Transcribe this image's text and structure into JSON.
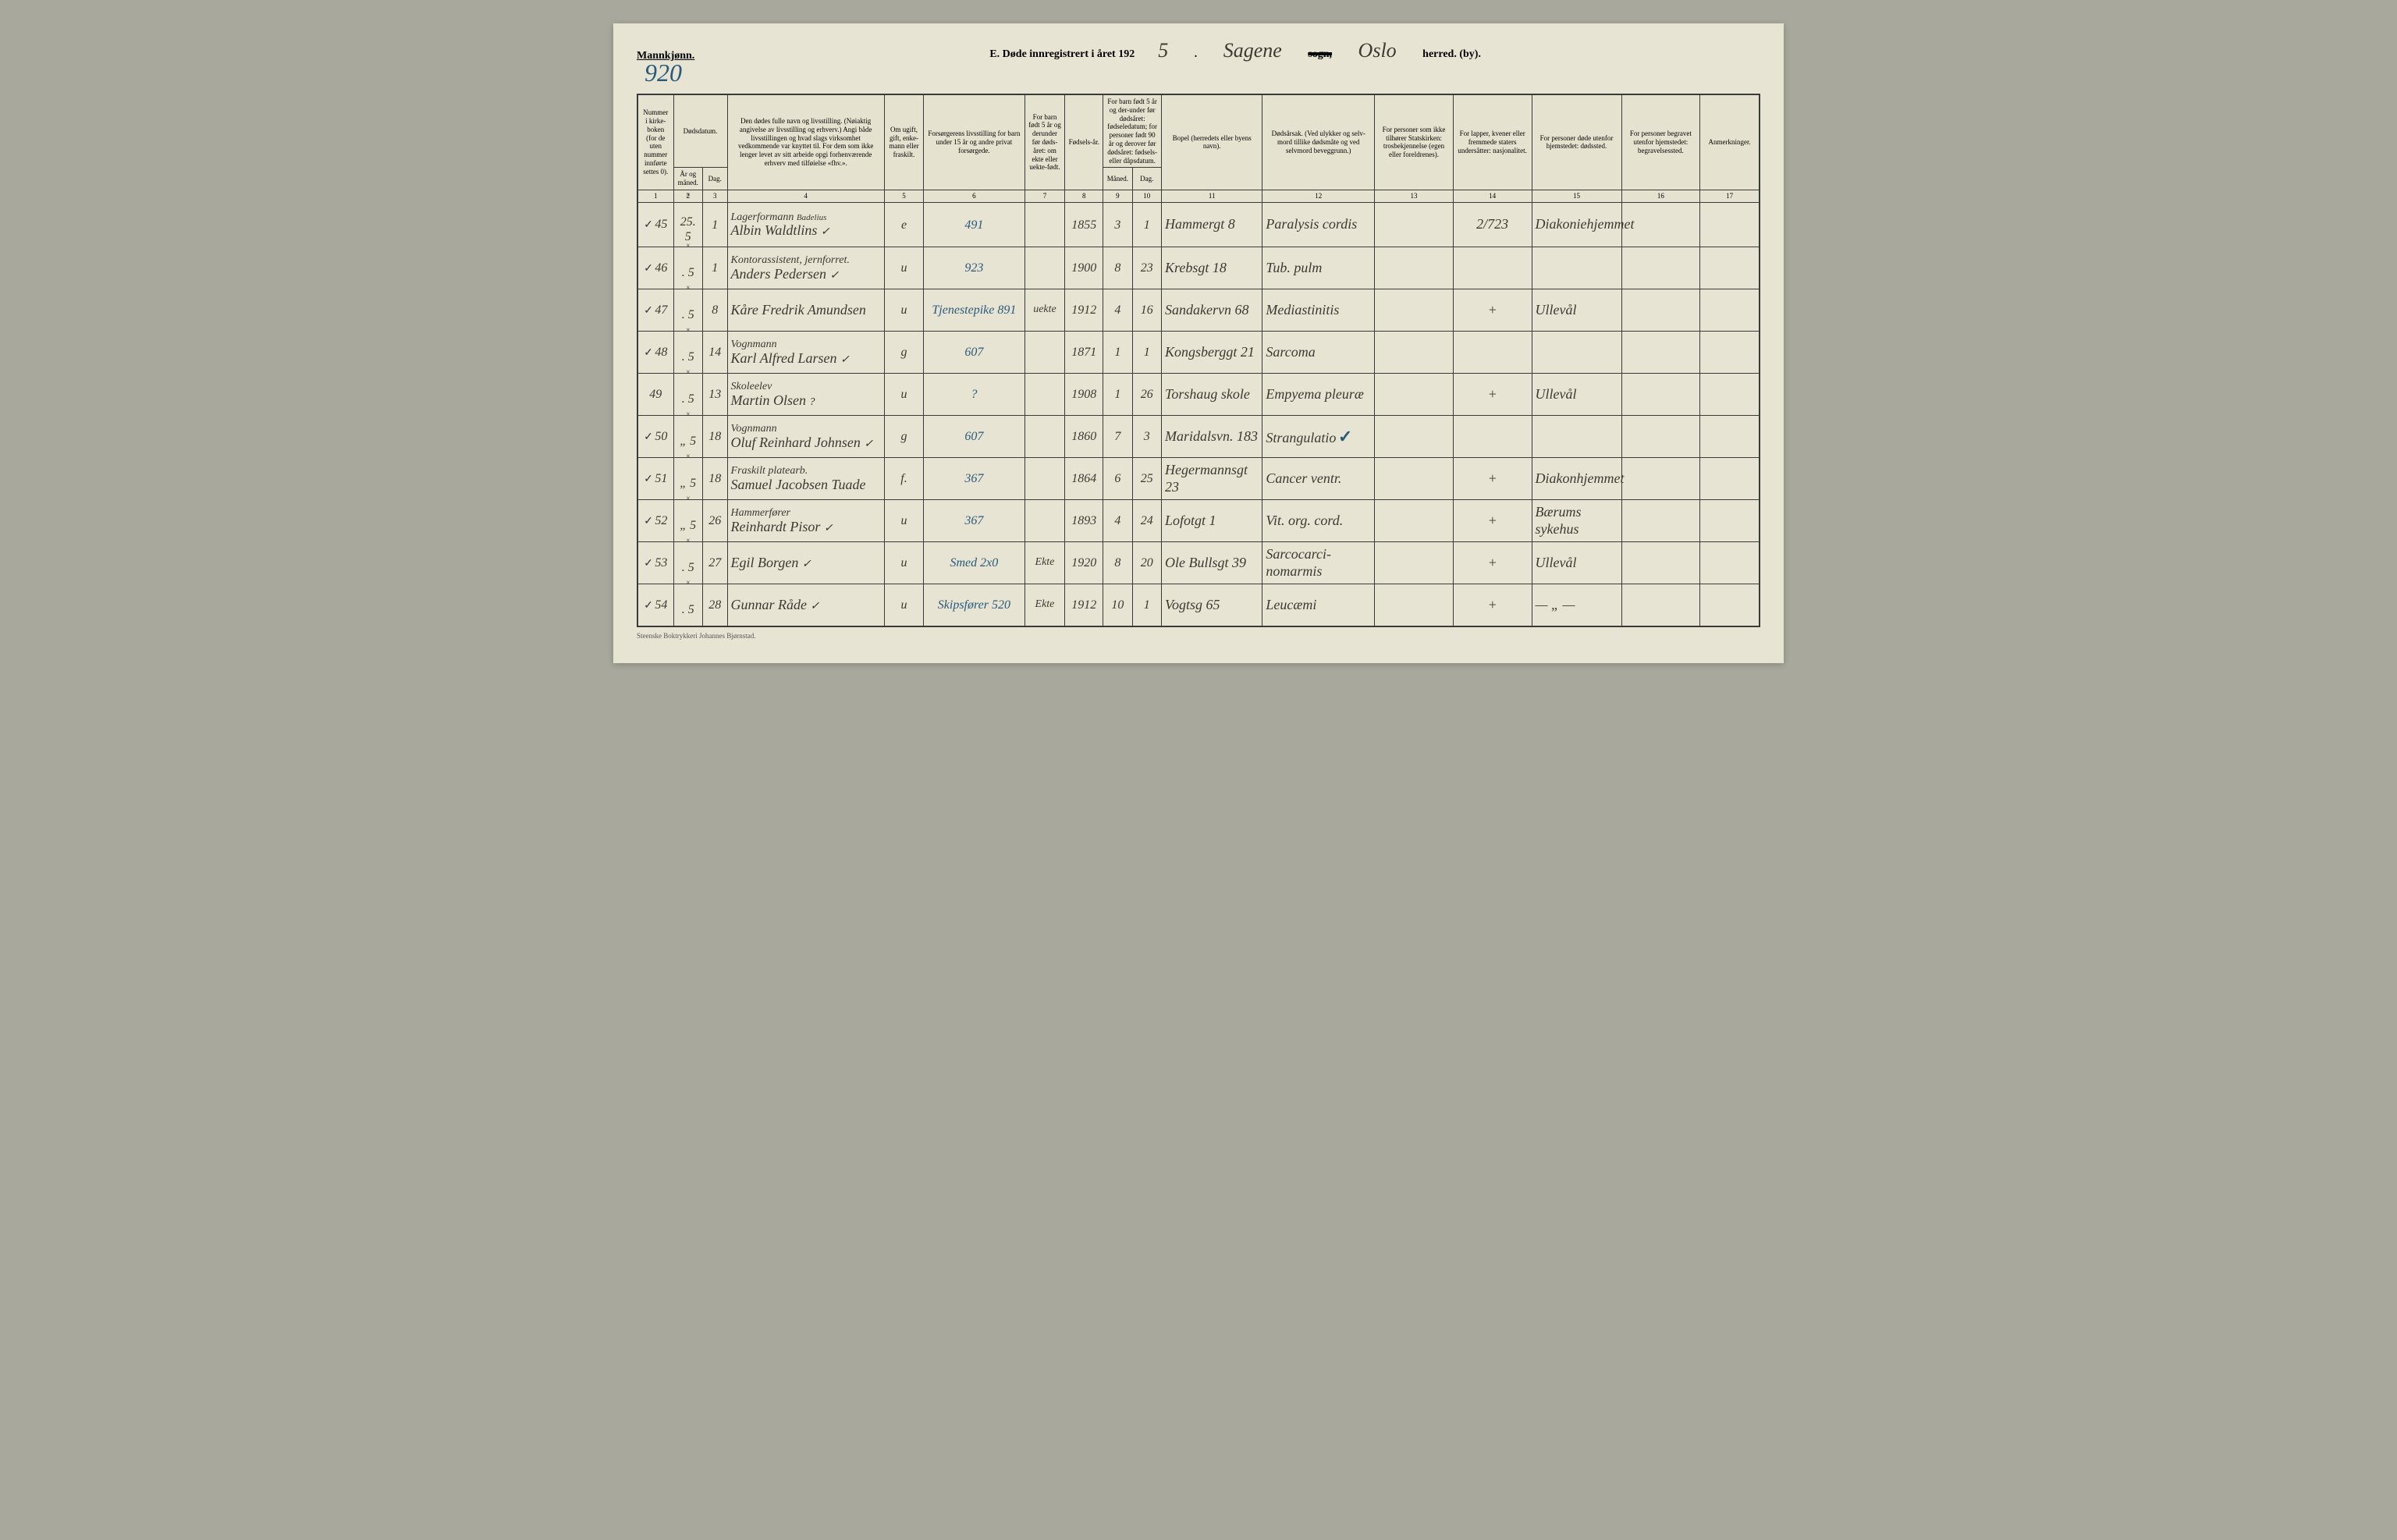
{
  "header": {
    "gender": "Mannkjønn.",
    "page_number": "920",
    "title_prefix": "E.  Døde innregistrert i året 192",
    "year_suffix": "5",
    "parish": "Sagene",
    "sogn_label": "sogn,",
    "city": "Oslo",
    "herred_label": "herred. (by)."
  },
  "columns": {
    "c1": "Nummer i kirke-boken (for de uten nummer innførte settes 0).",
    "c2a": "Dødsdatum.",
    "c2b_ar": "År og måned.",
    "c2b_dag": "Dag.",
    "c4": "Den dødes fulle navn og livsstilling. (Nøiaktig angivelse av livsstilling og erhverv.) Angi både livsstillingen og hvad slags virksomhet vedkommende var knyttet til. For dem som ikke lenger levet av sitt arbeide opgi forhenværende erhverv med tilføielse «fhv.».",
    "c5": "Om ugift, gift, enke-mann eller fraskilt.",
    "c6": "Forsørgerens livsstilling for barn under 15 år og andre privat forsørgede.",
    "c7": "For barn født 5 år og derunder før døds-året: om ekte eller uekte-født.",
    "c8": "Fødsels-år.",
    "c9_10": "For barn født 5 år og der-under før dødsåret: fødseledatum; for personer født 90 år og derover før dødsåret: fødsels- eller dåpsdatum.",
    "c9": "Måned.",
    "c10": "Dag.",
    "c11": "Bopel (herredets eller byens navn).",
    "c12": "Dødsårsak. (Ved ulykker og selv-mord tillike dødsmåte og ved selvmord beveggrunn.)",
    "c13": "For personer som ikke tilhører Statskirken: trosbekjennelse (egen eller foreldrenes).",
    "c14": "For lapper, kvener eller fremmede staters undersåtter: nasjonalitet.",
    "c15": "For personer døde utenfor hjemstedet: dødssted.",
    "c16": "For personer begravet utenfor hjemstedet: begravelsessted.",
    "c17": "Anmerkninger."
  },
  "colnums": [
    "1",
    "2",
    "3",
    "4",
    "5",
    "6",
    "7",
    "8",
    "9",
    "10",
    "11",
    "12",
    "13",
    "14",
    "15",
    "16",
    "17"
  ],
  "rows": [
    {
      "check": "✓",
      "num": "45",
      "ar": "25. 5",
      "dag": "1",
      "occupation": "Lagerformann",
      "sup": "Badelius",
      "name": "Albin Waldtlins",
      "tick": "✓",
      "marital": "e",
      "forsorger": "491",
      "ekte": "",
      "faar": "1855",
      "fmnd": "3",
      "fdag": "1",
      "bopel": "Hammergt 8",
      "cause": "Paralysis cordis",
      "c13": "",
      "c14": "2/723",
      "c15": "Diakoniehjemmet",
      "c16": "",
      "c17": ""
    },
    {
      "check": "✓",
      "num": "46",
      "ar": ". 5",
      "dag": "1",
      "occupation": "Kontorassistent, jernforret.",
      "name": "Anders Pedersen",
      "tick": "✓",
      "marital": "u",
      "forsorger": "923",
      "ekte": "",
      "faar": "1900",
      "fmnd": "8",
      "fdag": "23",
      "bopel": "Krebsgt 18",
      "cause": "Tub. pulm",
      "c13": "",
      "c14": "",
      "c15": "",
      "c16": "",
      "c17": ""
    },
    {
      "check": "✓",
      "num": "47",
      "ar": ". 5",
      "dag": "8",
      "occupation": "",
      "name": "Kåre Fredrik Amundsen",
      "tick": "",
      "marital": "u",
      "forsorger": "Tjenestepike  891",
      "ekte": "uekte",
      "faar": "1912",
      "fmnd": "4",
      "fdag": "16",
      "bopel": "Sandakervn 68",
      "cause": "Mediastinitis",
      "c13": "",
      "c14": "+",
      "c15": "Ullevål",
      "c16": "",
      "c17": ""
    },
    {
      "check": "✓",
      "num": "48",
      "ar": ". 5",
      "dag": "14",
      "occupation": "Vognmann",
      "name": "Karl Alfred Larsen",
      "tick": "✓",
      "marital": "g",
      "forsorger": "607",
      "ekte": "",
      "faar": "1871",
      "fmnd": "1",
      "fdag": "1",
      "bopel": "Kongsberggt 21",
      "cause": "Sarcoma",
      "c13": "",
      "c14": "",
      "c15": "",
      "c16": "",
      "c17": ""
    },
    {
      "check": "",
      "num": "49",
      "ar": ". 5",
      "dag": "13",
      "occupation": "Skoleelev",
      "name": "Martin Olsen",
      "tick": "?",
      "marital": "u",
      "forsorger": "?",
      "ekte": "",
      "faar": "1908",
      "fmnd": "1",
      "fdag": "26",
      "bopel": "Torshaug skole",
      "cause": "Empyema pleuræ",
      "c13": "",
      "c14": "+",
      "c15": "Ullevål",
      "c16": "",
      "c17": ""
    },
    {
      "check": "✓",
      "num": "50",
      "ar": "„ 5",
      "dag": "18",
      "occupation": "Vognmann",
      "name": "Oluf Reinhard Johnsen",
      "tick": "✓",
      "marital": "g",
      "forsorger": "607",
      "ekte": "",
      "faar": "1860",
      "fmnd": "7",
      "fdag": "3",
      "bopel": "Maridalsvn. 183",
      "cause": "Strangulatio",
      "cause_check": "✓",
      "c13": "",
      "c14": "",
      "c15": "",
      "c16": "",
      "c17": ""
    },
    {
      "check": "✓",
      "num": "51",
      "ar": "„ 5",
      "dag": "18",
      "occupation": "Fraskilt platearb.",
      "name": "Samuel Jacobsen Tuade",
      "tick": "",
      "marital": "f.",
      "forsorger": "367",
      "ekte": "",
      "faar": "1864",
      "fmnd": "6",
      "fdag": "25",
      "bopel": "Hegermannsgt 23",
      "cause": "Cancer ventr.",
      "c13": "",
      "c14": "+",
      "c15": "Diakonhjemmet",
      "c16": "",
      "c17": ""
    },
    {
      "check": "✓",
      "num": "52",
      "ar": "„ 5",
      "dag": "26",
      "occupation": "Hammerfører",
      "name": "Reinhardt Pisor",
      "tick": "✓",
      "marital": "u",
      "forsorger": "367",
      "ekte": "",
      "faar": "1893",
      "fmnd": "4",
      "fdag": "24",
      "bopel": "Lofotgt 1",
      "cause": "Vit. org. cord.",
      "c13": "",
      "c14": "+",
      "c15": "Bærums sykehus",
      "c16": "",
      "c17": ""
    },
    {
      "check": "✓",
      "num": "53",
      "ar": ". 5",
      "dag": "27",
      "occupation": "",
      "name": "Egil Borgen",
      "tick": "✓",
      "marital": "u",
      "forsorger": "Smed   2x0",
      "ekte": "Ekte",
      "faar": "1920",
      "fmnd": "8",
      "fdag": "20",
      "bopel": "Ole Bullsgt 39",
      "cause": "Sarcocarci-nomarmis",
      "c13": "",
      "c14": "+",
      "c15": "Ullevål",
      "c16": "",
      "c17": ""
    },
    {
      "check": "✓",
      "num": "54",
      "ar": ". 5",
      "dag": "28",
      "occupation": "",
      "name": "Gunnar Råde",
      "tick": "✓",
      "marital": "u",
      "forsorger": "Skipsfører  520",
      "ekte": "Ekte",
      "faar": "1912",
      "fmnd": "10",
      "fdag": "1",
      "bopel": "Vogtsg 65",
      "cause": "Leucæmi",
      "c13": "",
      "c14": "+",
      "c15": "— „ —",
      "c16": "",
      "c17": ""
    }
  ],
  "footer": "Steenske Boktrykkeri Johannes Bjørnstad."
}
